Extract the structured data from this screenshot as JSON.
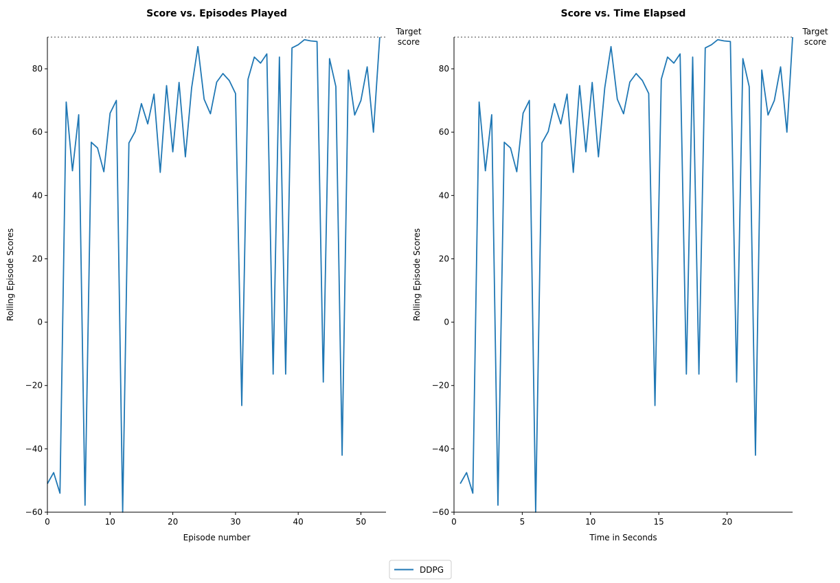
{
  "legend": {
    "label": "DDPG",
    "color": "#1f77b4",
    "placement": "bottom-center"
  },
  "chart_data": [
    {
      "type": "line",
      "title": "Score vs. Episodes Played",
      "xlabel": "Episode number",
      "ylabel": "Rolling Episode Scores",
      "xlim": [
        0,
        54
      ],
      "ylim": [
        -60,
        90
      ],
      "xticks": [
        0,
        10,
        20,
        30,
        40,
        50
      ],
      "xtick_labels": [
        "0",
        "10",
        "20",
        "30",
        "40",
        "50"
      ],
      "yticks": [
        -60,
        -40,
        -20,
        0,
        20,
        40,
        60,
        80
      ],
      "ytick_labels": [
        "−60",
        "−40",
        "−20",
        "0",
        "20",
        "40",
        "60",
        "80"
      ],
      "target_score": 90,
      "target_label_lines": [
        "Target",
        "score"
      ],
      "grid": false,
      "series": [
        {
          "name": "DDPG",
          "color": "#1f77b4",
          "x": [
            0,
            1,
            2,
            3,
            4,
            5,
            6,
            7,
            8,
            9,
            10,
            11,
            12,
            13,
            14,
            15,
            16,
            17,
            18,
            19,
            20,
            21,
            22,
            23,
            24,
            25,
            26,
            27,
            28,
            29,
            30,
            31,
            32,
            33,
            34,
            35,
            36,
            37,
            38,
            39,
            40,
            41,
            42,
            43,
            44,
            45,
            46,
            47,
            48,
            49,
            50,
            51,
            52,
            53
          ],
          "y": [
            -51,
            -47.5,
            -54,
            69.5,
            47.8,
            65.5,
            -57.8,
            56.8,
            55,
            47.5,
            66,
            70,
            -61,
            56.6,
            60.2,
            69,
            62.6,
            72,
            47.3,
            74.7,
            53.8,
            75.7,
            52.2,
            74,
            87,
            70.4,
            65.8,
            75.8,
            78.5,
            76.3,
            72.2,
            -26.3,
            76.7,
            83.7,
            81.8,
            84.7,
            -16.4,
            83.7,
            -16.4,
            86.6,
            87.6,
            89.2,
            88.8,
            88.6,
            -18.9,
            83.2,
            74.4,
            -42,
            79.6,
            65.4,
            70,
            80.6,
            60,
            90
          ]
        }
      ]
    },
    {
      "type": "line",
      "title": "Score vs. Time Elapsed",
      "xlabel": "Time in Seconds",
      "ylabel": "Rolling Episode Scores",
      "xlim": [
        0,
        24.8
      ],
      "ylim": [
        -60,
        90
      ],
      "xticks": [
        0,
        5,
        10,
        15,
        20
      ],
      "xtick_labels": [
        "0",
        "5",
        "10",
        "15",
        "20"
      ],
      "yticks": [
        -60,
        -40,
        -20,
        0,
        20,
        40,
        60,
        80
      ],
      "ytick_labels": [
        "−60",
        "−40",
        "−20",
        "0",
        "20",
        "40",
        "60",
        "80"
      ],
      "target_score": 90,
      "target_label_lines": [
        "Target",
        "score"
      ],
      "grid": false,
      "series": [
        {
          "name": "DDPG",
          "color": "#1f77b4",
          "x": [
            0.46,
            0.92,
            1.38,
            1.84,
            2.3,
            2.76,
            3.22,
            3.68,
            4.14,
            4.6,
            5.06,
            5.52,
            5.98,
            6.44,
            6.9,
            7.36,
            7.82,
            8.28,
            8.74,
            9.2,
            9.66,
            10.12,
            10.58,
            11.04,
            11.5,
            11.96,
            12.42,
            12.88,
            13.34,
            13.8,
            14.26,
            14.72,
            15.18,
            15.64,
            16.1,
            16.56,
            17.02,
            17.48,
            17.94,
            18.4,
            18.86,
            19.32,
            19.78,
            20.24,
            20.7,
            21.16,
            21.62,
            22.08,
            22.54,
            23.0,
            23.46,
            23.92,
            24.38,
            24.8
          ],
          "y": [
            -51,
            -47.5,
            -54,
            69.5,
            47.8,
            65.5,
            -57.8,
            56.8,
            55,
            47.5,
            66,
            70,
            -61,
            56.6,
            60.2,
            69,
            62.6,
            72,
            47.3,
            74.7,
            53.8,
            75.7,
            52.2,
            74,
            87,
            70.4,
            65.8,
            75.8,
            78.5,
            76.3,
            72.2,
            -26.3,
            76.7,
            83.7,
            81.8,
            84.7,
            -16.4,
            83.7,
            -16.4,
            86.6,
            87.6,
            89.2,
            88.8,
            88.6,
            -18.9,
            83.2,
            74.4,
            -42,
            79.6,
            65.4,
            70,
            80.6,
            60,
            90
          ]
        }
      ]
    }
  ]
}
